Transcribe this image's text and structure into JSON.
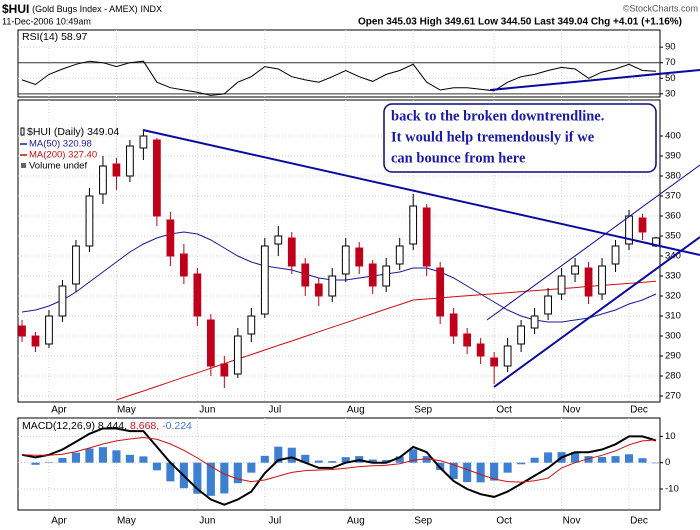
{
  "header": {
    "symbol": "$HUI",
    "name": "(Gold Bugs Index - AMEX)",
    "exchange": "INDX",
    "date": "11-Dec-2006 10:49am",
    "quote": "Open 345.03  High 349.61  Low 344.50  Last 349.04  Chg +4.01 (+1.16%)",
    "credit": "©StockCharts.com"
  },
  "annotation": [
    "back to the broken downtrendline.",
    "It would help tremendously if we",
    "can bounce from here"
  ],
  "chart_data": [
    {
      "type": "line",
      "title": "RSI(14) 58.97",
      "color": "#000000",
      "values": [
        48,
        42,
        55,
        62,
        68,
        72,
        70,
        65,
        70,
        72,
        45,
        38,
        35,
        32,
        28,
        30,
        45,
        52,
        65,
        62,
        52,
        48,
        45,
        52,
        60,
        52,
        46,
        55,
        60,
        68,
        45,
        35,
        38,
        38,
        36,
        34,
        45,
        52,
        55,
        60,
        64,
        62,
        50,
        58,
        62,
        68,
        60,
        58.97
      ],
      "ylim": [
        26,
        112
      ],
      "yticks": [
        30,
        50,
        70,
        90
      ],
      "thresholds": [
        30,
        70
      ],
      "grid": true
    },
    {
      "type": "candlestick",
      "title": "$HUI (Daily) 349.04",
      "up_color": "#000000",
      "down_color": "#c0001a",
      "categories": [
        null,
        null,
        "Apr",
        null,
        null,
        null,
        null,
        "May",
        null,
        null,
        null,
        null,
        null,
        "Jun",
        null,
        null,
        null,
        null,
        "Jul",
        null,
        null,
        null,
        null,
        null,
        "Aug",
        null,
        null,
        null,
        null,
        "Sep",
        null,
        null,
        null,
        null,
        null,
        "Oct",
        null,
        null,
        null,
        null,
        "Nov",
        null,
        null,
        null,
        null,
        "Dec",
        null,
        null
      ],
      "open": [
        305,
        300,
        296,
        310,
        326,
        345,
        371,
        386,
        380,
        394,
        398,
        358,
        341,
        331,
        308,
        286,
        281,
        301,
        311,
        346,
        349,
        336,
        326,
        320,
        331,
        344,
        336,
        325,
        336,
        346,
        364,
        334,
        311,
        301,
        296,
        289,
        285,
        296,
        304,
        311,
        321,
        331,
        334,
        321,
        336,
        346,
        359,
        345.03
      ],
      "high": [
        308,
        302,
        313,
        328,
        348,
        374,
        390,
        389,
        398,
        403,
        399,
        362,
        346,
        334,
        311,
        290,
        304,
        314,
        349,
        355,
        352,
        339,
        329,
        334,
        349,
        347,
        338,
        339,
        349,
        371,
        366,
        337,
        314,
        304,
        299,
        292,
        299,
        308,
        314,
        324,
        334,
        339,
        337,
        339,
        348,
        363,
        361,
        349.61
      ],
      "low": [
        297,
        292,
        294,
        307,
        322,
        342,
        366,
        373,
        377,
        388,
        355,
        335,
        326,
        305,
        280,
        274,
        279,
        297,
        309,
        340,
        331,
        320,
        315,
        317,
        327,
        331,
        321,
        322,
        333,
        343,
        330,
        306,
        296,
        291,
        286,
        276,
        282,
        292,
        301,
        308,
        318,
        327,
        316,
        318,
        332,
        343,
        348,
        344.5
      ],
      "close": [
        300,
        295,
        310,
        325,
        345,
        370,
        385,
        380,
        395,
        400,
        360,
        340,
        330,
        310,
        285,
        280,
        300,
        310,
        345,
        350,
        335,
        325,
        320,
        330,
        345,
        335,
        325,
        335,
        345,
        365,
        335,
        310,
        300,
        295,
        290,
        285,
        295,
        305,
        310,
        320,
        330,
        335,
        320,
        335,
        345,
        360,
        352,
        349.04
      ],
      "series": [
        {
          "name": "MA(50) 320.98",
          "color": "#1a1a9a",
          "values": [
            312,
            313,
            315,
            318,
            322,
            327,
            332,
            337,
            342,
            346,
            349,
            351,
            352,
            351,
            348,
            344,
            340,
            337,
            335,
            334,
            333,
            331,
            329,
            328,
            328,
            329,
            330,
            331,
            332,
            334,
            334,
            332,
            329,
            325,
            321,
            317,
            313,
            310,
            308,
            307,
            307,
            308,
            309,
            311,
            313,
            316,
            318,
            320.98
          ]
        },
        {
          "name": "MA(200) 327.40",
          "color": "#cc1010",
          "values": [
            null,
            null,
            null,
            null,
            null,
            null,
            null,
            268,
            270.3,
            272.5,
            274.8,
            277.1,
            279.4,
            281.6,
            283.9,
            286.2,
            288.5,
            290.7,
            293,
            295.3,
            297.5,
            299.8,
            302.1,
            304.4,
            306.6,
            308.9,
            311.2,
            313.5,
            315.7,
            318,
            318.5,
            319,
            319.6,
            320.1,
            320.6,
            321.1,
            321.6,
            322.2,
            322.7,
            323.2,
            323.7,
            324.2,
            324.8,
            325.3,
            325.8,
            326.3,
            326.8,
            327.4
          ]
        }
      ],
      "extra_legend": "Volume undef",
      "ylim": [
        267,
        418
      ],
      "yticks": [
        270,
        280,
        290,
        300,
        310,
        320,
        330,
        340,
        350,
        360,
        370,
        380,
        390,
        400
      ],
      "grid": true
    },
    {
      "type": "macd",
      "title": "MACD(12,26,9)",
      "series": [
        {
          "name": "8.444,",
          "color": "#000000",
          "values": [
            3,
            2,
            3,
            5,
            8,
            11,
            13,
            13,
            12,
            12,
            6,
            0,
            -5,
            -10,
            -14,
            -16,
            -14,
            -11,
            -4,
            1,
            2,
            0,
            -2,
            -2,
            0,
            1,
            0,
            0,
            2,
            6,
            4,
            -2,
            -7,
            -10,
            -12,
            -13,
            -11,
            -8,
            -5,
            -2,
            2,
            4,
            4,
            5,
            7,
            10,
            10,
            8.444
          ]
        },
        {
          "name": "8.668,",
          "color": "#d01010",
          "values": [
            3,
            2.8,
            2.8,
            3.2,
            4.2,
            5.6,
            7.1,
            8.3,
            9,
            9.6,
            8.9,
            7.1,
            4.7,
            1.8,
            -1.4,
            -4.3,
            -6.2,
            -7.2,
            -6.6,
            -5.1,
            -3.7,
            -3,
            -2.8,
            -2.6,
            -2.1,
            -1.5,
            -1.2,
            -1,
            -0.4,
            0.9,
            1.5,
            0.8,
            -0.8,
            -2.6,
            -4.5,
            -6.2,
            -7.2,
            -7.4,
            -6.9,
            -5.9,
            -2,
            0,
            1.5,
            2.8,
            4.5,
            6.8,
            8.3,
            8.668
          ]
        },
        {
          "name": "-0.224",
          "color": "#3d7fd0",
          "bar": true,
          "values": [
            0,
            -0.8,
            0.2,
            1.8,
            3.8,
            5.4,
            5.9,
            4.7,
            3,
            2.4,
            -2.9,
            -7.1,
            -9.7,
            -11.8,
            -12.6,
            -11.7,
            -7.8,
            -3.8,
            2.6,
            6.1,
            5.7,
            3,
            0.8,
            0.6,
            2.1,
            2.5,
            1.2,
            1,
            2.4,
            5.1,
            2.5,
            -2.8,
            -6.2,
            -7.4,
            -7.5,
            -6.8,
            -3.8,
            -0.6,
            1.9,
            3.9,
            4,
            4,
            2.5,
            2.2,
            2.5,
            3.2,
            1.7,
            -0.224
          ]
        }
      ],
      "ylim": [
        -18,
        17
      ],
      "yticks": [
        -10,
        0,
        10
      ],
      "grid": true
    }
  ]
}
